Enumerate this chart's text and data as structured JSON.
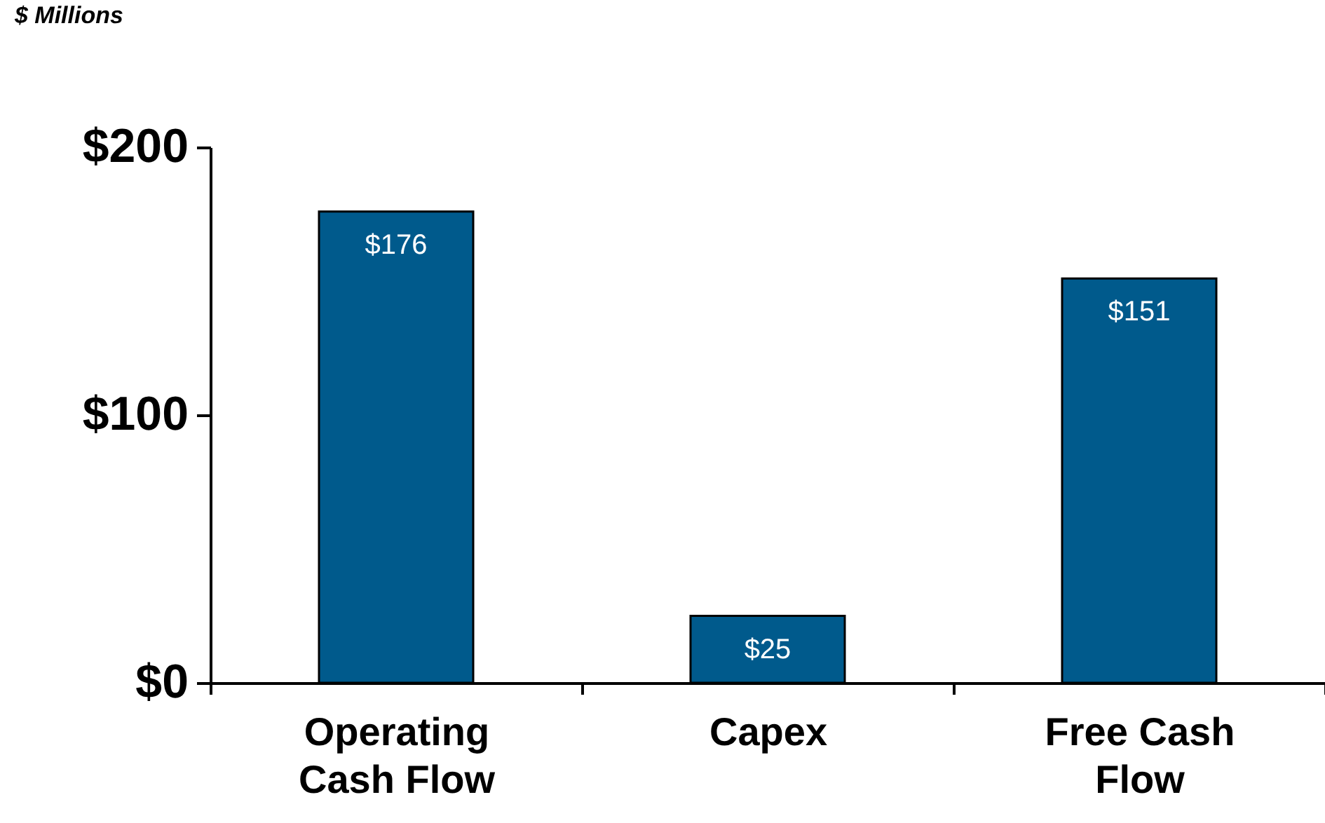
{
  "chart_data": {
    "type": "bar",
    "ylabel": "$ Millions",
    "categories": [
      "Operating Cash Flow",
      "Capex",
      "Free Cash Flow"
    ],
    "values": [
      176,
      25,
      151
    ],
    "color": "#005a8c",
    "value_labels": [
      "$176",
      "$25",
      "$151"
    ],
    "ylim": [
      0,
      200
    ],
    "yticks": [
      {
        "value": 0,
        "label": "$0"
      },
      {
        "value": 100,
        "label": "$100"
      },
      {
        "value": 200,
        "label": "$200"
      }
    ],
    "grid": false
  }
}
